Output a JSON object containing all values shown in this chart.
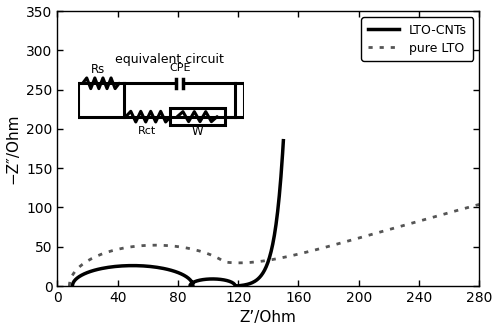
{
  "title": "",
  "xlabel": "Z’/Ohm",
  "ylabel": "−Z″/Ohm",
  "xlim": [
    0,
    280
  ],
  "ylim": [
    0,
    350
  ],
  "xticks": [
    0,
    40,
    80,
    120,
    160,
    200,
    240,
    280
  ],
  "yticks": [
    0,
    50,
    100,
    150,
    200,
    250,
    300,
    350
  ],
  "lto_cnts_color": "#000000",
  "pure_lto_color": "#555555",
  "background_color": "#ffffff",
  "legend_lto_cnts": "LTO-CNTs",
  "legend_pure_lto": "pure LTO",
  "circuit_label": "equivalent circuit",
  "rs_label": "Rs",
  "rct_label": "Rct",
  "cpe_label": "CPE",
  "w_label": "W"
}
